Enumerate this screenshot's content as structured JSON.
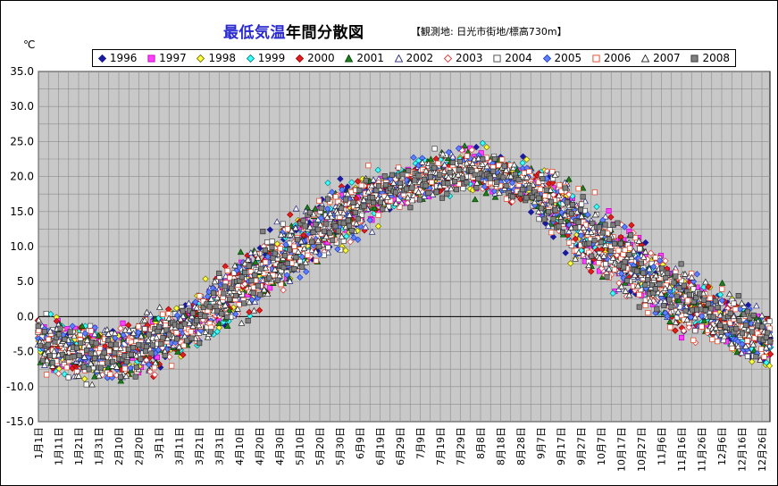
{
  "title_main": "最低気温",
  "title_rest": "年間分散図",
  "subtitle": "【観測地: 日光市街地/標高730m】",
  "unit_label": "℃",
  "chart_data": {
    "type": "scatter",
    "title": "最低気温年間分散図",
    "xlabel": "",
    "ylabel": "℃",
    "ylim": [
      -15,
      35
    ],
    "y_ticks": [
      "-15.0",
      "-10.0",
      "-5.0",
      "0.0",
      "5.0",
      "10.0",
      "15.0",
      "20.0",
      "25.0",
      "30.0",
      "35.0"
    ],
    "x_ticks": [
      "1月1日",
      "1月11日",
      "1月21日",
      "1月31日",
      "2月10日",
      "2月20日",
      "3月1日",
      "3月11日",
      "3月21日",
      "3月31日",
      "4月10日",
      "4月20日",
      "4月30日",
      "5月10日",
      "5月20日",
      "5月30日",
      "6月9日",
      "6月19日",
      "6月29日",
      "7月9日",
      "7月19日",
      "7月29日",
      "8月8日",
      "8月18日",
      "8月28日",
      "9月7日",
      "9月17日",
      "9月27日",
      "10月7日",
      "10月17日",
      "10月27日",
      "11月6日",
      "11月16日",
      "11月26日",
      "12月6日",
      "12月16日",
      "12月26日"
    ],
    "grid": true,
    "legend_position": "top",
    "series": [
      {
        "name": "1996",
        "marker": "diamond",
        "color": "#1a1a9c",
        "fill": "#1a1a9c"
      },
      {
        "name": "1997",
        "marker": "square",
        "color": "#c000c0",
        "fill": "#ff40ff"
      },
      {
        "name": "1998",
        "marker": "diamond",
        "color": "#707000",
        "fill": "#ffff40"
      },
      {
        "name": "1999",
        "marker": "diamond",
        "color": "#008080",
        "fill": "#40ffff"
      },
      {
        "name": "2000",
        "marker": "diamond",
        "color": "#a00000",
        "fill": "#e02020"
      },
      {
        "name": "2001",
        "marker": "triangle",
        "color": "#004000",
        "fill": "#208020"
      },
      {
        "name": "2002",
        "marker": "triangle",
        "color": "#202080",
        "fill": "#ffffff"
      },
      {
        "name": "2003",
        "marker": "diamond",
        "color": "#e03030",
        "fill": "#ffffff"
      },
      {
        "name": "2004",
        "marker": "square",
        "color": "#404040",
        "fill": "#ffffff"
      },
      {
        "name": "2005",
        "marker": "diamond",
        "color": "#2040c0",
        "fill": "#6080ff"
      },
      {
        "name": "2006",
        "marker": "square",
        "color": "#e04020",
        "fill": "#ffffff"
      },
      {
        "name": "2007",
        "marker": "triangle",
        "color": "#202020",
        "fill": "#ffffff"
      },
      {
        "name": "2008",
        "marker": "square",
        "color": "#303030",
        "fill": "#808080"
      }
    ],
    "seasonal_profile": {
      "day_of_year": [
        1,
        15,
        32,
        46,
        60,
        74,
        91,
        105,
        121,
        135,
        152,
        166,
        182,
        196,
        213,
        227,
        244,
        258,
        274,
        288,
        305,
        319,
        335,
        349,
        365
      ],
      "mean_min_temp": [
        -3.5,
        -4.5,
        -5.5,
        -5.0,
        -3.5,
        -1.5,
        2.0,
        5.0,
        8.5,
        11.0,
        14.5,
        17.0,
        18.5,
        20.0,
        21.0,
        20.5,
        19.0,
        16.0,
        12.0,
        9.0,
        5.5,
        3.0,
        0.5,
        -1.5,
        -3.0
      ]
    }
  }
}
